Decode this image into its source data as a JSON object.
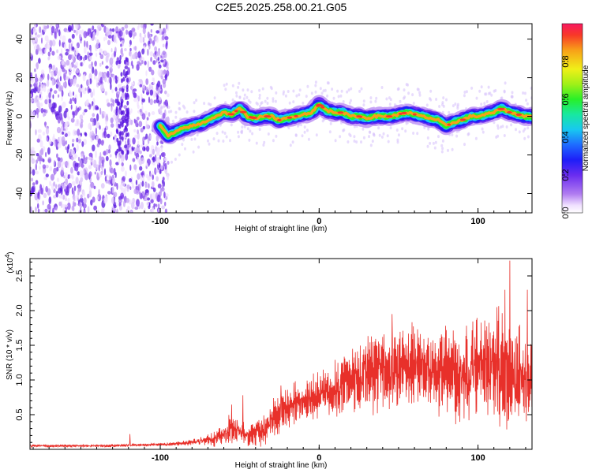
{
  "title": "C2E5.2025.258.00.21.G05",
  "chart_data": [
    {
      "type": "heatmap",
      "name": "spectrogram",
      "xlabel": "Height of straight line (km)",
      "ylabel": "Frequency (Hz)",
      "xlim": [
        -182,
        134
      ],
      "ylim": [
        -50,
        48
      ],
      "x_ticks": [
        -100,
        0,
        100
      ],
      "x_tick_labels": [
        "-100",
        "0",
        "100"
      ],
      "y_ticks": [
        40,
        20,
        0,
        -20,
        -40
      ],
      "y_tick_labels": [
        "40",
        "20",
        "0",
        "-20",
        "-40"
      ],
      "ridge": {
        "description": "dominant frequency trace vs height",
        "x": [
          -100,
          -95,
          -90,
          -85,
          -80,
          -75,
          -70,
          -65,
          -60,
          -55,
          -50,
          -45,
          -40,
          -35,
          -30,
          -25,
          -20,
          -15,
          -10,
          -5,
          0,
          5,
          10,
          15,
          20,
          25,
          30,
          35,
          40,
          45,
          50,
          55,
          60,
          65,
          70,
          75,
          80,
          85,
          90,
          95,
          100,
          105,
          110,
          115,
          120,
          125,
          130,
          134
        ],
        "freq": [
          -5,
          -10,
          -8,
          -6,
          -5,
          -4,
          -2,
          0,
          2,
          1,
          4,
          0,
          -1,
          0,
          0,
          -2,
          -1,
          0,
          1,
          2,
          6,
          3,
          2,
          2,
          0,
          0,
          -1,
          0,
          0,
          0,
          1,
          2,
          1,
          0,
          -1,
          -2,
          -5,
          -3,
          -2,
          0,
          0,
          1,
          2,
          4,
          2,
          1,
          0,
          0
        ]
      },
      "colorbar": {
        "label": "Normalized spectral amplitude",
        "range": [
          0,
          1
        ],
        "ticks": [
          0.0,
          0.2,
          0.4,
          0.6,
          0.8
        ],
        "tick_labels": [
          "0.0",
          "0.2",
          "0.4",
          "0.6",
          "0.8"
        ]
      }
    },
    {
      "type": "line",
      "name": "snr",
      "xlabel": "Height of straight line (km)",
      "ylabel": "SNR (10 * v/v)",
      "y_multiplier": "(x10",
      "y_multiplier_exp": "4",
      "y_multiplier_close": ")",
      "xlim": [
        -182,
        134
      ],
      "ylim": [
        0,
        2.75
      ],
      "x_ticks": [
        -100,
        0,
        100
      ],
      "x_tick_labels": [
        "-100",
        "0",
        "100"
      ],
      "y_ticks": [
        0.5,
        1.0,
        1.5,
        2.0,
        2.5
      ],
      "y_tick_labels": [
        "0.5",
        "1.0",
        "1.5",
        "2.0",
        "2.5"
      ],
      "color": "#e8302a",
      "envelope": {
        "x": [
          -182,
          -140,
          -120,
          -100,
          -90,
          -80,
          -70,
          -60,
          -55,
          -50,
          -45,
          -40,
          -35,
          -30,
          -25,
          -20,
          -10,
          0,
          10,
          20,
          30,
          40,
          50,
          60,
          70,
          80,
          90,
          100,
          110,
          120,
          130,
          134
        ],
        "mean": [
          0.05,
          0.05,
          0.06,
          0.07,
          0.08,
          0.1,
          0.14,
          0.2,
          0.35,
          0.25,
          0.2,
          0.25,
          0.3,
          0.4,
          0.55,
          0.6,
          0.7,
          0.75,
          0.85,
          1.0,
          1.1,
          1.15,
          1.2,
          1.2,
          1.15,
          1.1,
          1.1,
          1.15,
          1.2,
          1.1,
          1.0,
          1.0
        ],
        "spread": [
          0.02,
          0.02,
          0.02,
          0.02,
          0.03,
          0.04,
          0.08,
          0.15,
          0.25,
          0.15,
          0.15,
          0.2,
          0.25,
          0.25,
          0.3,
          0.3,
          0.35,
          0.35,
          0.4,
          0.5,
          0.55,
          0.55,
          0.6,
          0.6,
          0.55,
          0.6,
          0.65,
          0.7,
          0.8,
          0.9,
          0.8,
          0.6
        ]
      },
      "spikes": [
        {
          "x": -119,
          "y": 0.22
        },
        {
          "x": -48,
          "y": 0.78
        },
        {
          "x": -24,
          "y": 0.92
        },
        {
          "x": 120,
          "y": 2.72
        },
        {
          "x": 117,
          "y": 2.3
        },
        {
          "x": 131,
          "y": 2.3
        },
        {
          "x": 112,
          "y": 2.05
        },
        {
          "x": 46,
          "y": 1.95
        }
      ]
    }
  ],
  "colors": {
    "line": "#e8302a",
    "axis": "#000000"
  }
}
